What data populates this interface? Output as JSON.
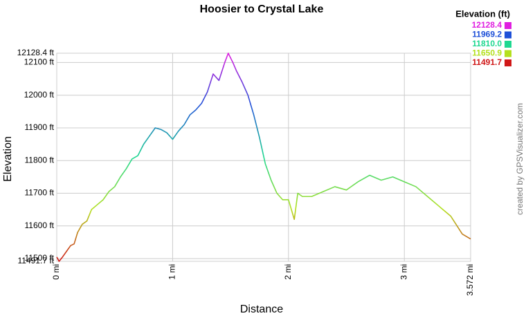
{
  "chart_data": {
    "type": "line",
    "title": "Hoosier to Crystal Lake",
    "x_label": "Distance",
    "y_label": "Elevation",
    "x": [
      0,
      0.02,
      0.05,
      0.08,
      0.12,
      0.15,
      0.18,
      0.22,
      0.26,
      0.3,
      0.35,
      0.4,
      0.45,
      0.5,
      0.55,
      0.6,
      0.65,
      0.7,
      0.75,
      0.8,
      0.85,
      0.9,
      0.95,
      1.0,
      1.05,
      1.1,
      1.15,
      1.2,
      1.25,
      1.3,
      1.35,
      1.4,
      1.45,
      1.48,
      1.52,
      1.55,
      1.6,
      1.65,
      1.7,
      1.75,
      1.8,
      1.85,
      1.9,
      1.95,
      2.0,
      2.05,
      2.08,
      2.12,
      2.2,
      2.3,
      2.4,
      2.5,
      2.6,
      2.7,
      2.8,
      2.9,
      3.0,
      3.1,
      3.2,
      3.3,
      3.4,
      3.5,
      3.572
    ],
    "values": [
      11505,
      11491.7,
      11505,
      11520,
      11540,
      11545,
      11580,
      11605,
      11615,
      11650,
      11665,
      11680,
      11705,
      11720,
      11750,
      11775,
      11805,
      11815,
      11850,
      11875,
      11900,
      11895,
      11885,
      11865,
      11890,
      11910,
      11940,
      11955,
      11975,
      12010,
      12065,
      12045,
      12100,
      12128.4,
      12100,
      12075,
      12040,
      12000,
      11940,
      11870,
      11790,
      11740,
      11700,
      11680,
      11680,
      11620,
      11700,
      11690,
      11690,
      11705,
      11720,
      11710,
      11735,
      11755,
      11740,
      11750,
      11735,
      11720,
      11690,
      11660,
      11630,
      11575,
      11560
    ],
    "xlim": [
      0,
      3.572
    ],
    "ylim": [
      11491.7,
      12128.4
    ],
    "xticks": [
      {
        "value": 0,
        "label": "0 mi"
      },
      {
        "value": 1,
        "label": "1 mi"
      },
      {
        "value": 2,
        "label": "2 mi"
      },
      {
        "value": 3,
        "label": "3 mi"
      },
      {
        "value": 3.572,
        "label": "3.572 mi"
      }
    ],
    "yticks": [
      {
        "value": 11491.7,
        "label": "11491.7 ft"
      },
      {
        "value": 11500,
        "label": "11500 ft"
      },
      {
        "value": 11600,
        "label": "11600 ft"
      },
      {
        "value": 11700,
        "label": "11700 ft"
      },
      {
        "value": 11800,
        "label": "11800 ft"
      },
      {
        "value": 11900,
        "label": "11900 ft"
      },
      {
        "value": 12000,
        "label": "12000 ft"
      },
      {
        "value": 12100,
        "label": "12100 ft"
      },
      {
        "value": 12128.4,
        "label": "12128.4 ft"
      }
    ],
    "grid": true,
    "color_scale": {
      "title": "Elevation (ft)",
      "stops": [
        {
          "value": 12128.4,
          "color": "#e01ee0"
        },
        {
          "value": 11969.2,
          "color": "#1e50d8"
        },
        {
          "value": 11810,
          "label": "11810.0",
          "color": "#1ed890"
        },
        {
          "value": 11650.9,
          "color": "#b4e01e"
        },
        {
          "value": 11491.7,
          "color": "#d01818"
        }
      ]
    },
    "credit": "created by GPSVisualizer.com"
  }
}
